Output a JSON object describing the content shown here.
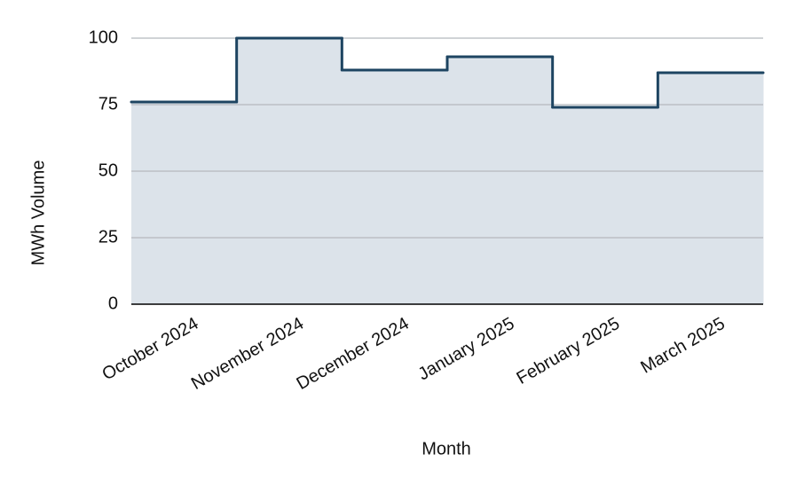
{
  "chart_data": {
    "type": "step-area",
    "x_label": "Month",
    "y_label": "MWh Volume",
    "categories": [
      "October 2024",
      "November 2024",
      "December 2024",
      "January 2025",
      "February 2025",
      "March 2025"
    ],
    "values": [
      76,
      100,
      88,
      93,
      74,
      87
    ],
    "color": "#1d4461",
    "fill_color": "#dce3ea",
    "ylim": [
      0,
      100
    ],
    "yticks": [
      0,
      25,
      50,
      75,
      100
    ],
    "grid": true
  }
}
